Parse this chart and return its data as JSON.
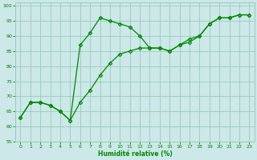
{
  "title": "",
  "xlabel": "Humidité relative (%)",
  "ylabel": "",
  "bg_color": "#cce8e8",
  "grid_color": "#99ccbb",
  "line_color": "#008800",
  "marker_color": "#008800",
  "xlim": [
    -0.5,
    23.5
  ],
  "ylim": [
    55,
    101
  ],
  "yticks": [
    55,
    60,
    65,
    70,
    75,
    80,
    85,
    90,
    95,
    100
  ],
  "xticks": [
    0,
    1,
    2,
    3,
    4,
    5,
    6,
    7,
    8,
    9,
    10,
    11,
    12,
    13,
    14,
    15,
    16,
    17,
    18,
    19,
    20,
    21,
    22,
    23
  ],
  "line1_x": [
    0,
    1,
    2,
    3,
    4,
    5,
    6,
    7,
    8,
    9,
    10,
    11,
    12,
    13,
    14,
    15,
    16,
    17,
    18,
    19,
    20,
    21,
    22,
    23
  ],
  "line1_y": [
    63,
    68,
    68,
    67,
    65,
    62,
    87,
    91,
    96,
    95,
    94,
    93,
    90,
    86,
    86,
    85,
    87,
    88,
    90,
    94,
    96,
    96,
    97,
    97
  ],
  "line2_x": [
    0,
    1,
    2,
    3,
    4,
    5,
    6,
    7,
    8,
    9,
    10,
    11,
    12,
    13,
    14,
    15,
    16,
    17,
    18,
    19,
    20,
    21,
    22,
    23
  ],
  "line2_y": [
    63,
    68,
    68,
    67,
    65,
    62,
    68,
    72,
    77,
    81,
    84,
    85,
    86,
    86,
    86,
    85,
    87,
    89,
    90,
    94,
    96,
    96,
    97,
    97
  ],
  "figsize": [
    3.2,
    2.0
  ],
  "dpi": 100
}
